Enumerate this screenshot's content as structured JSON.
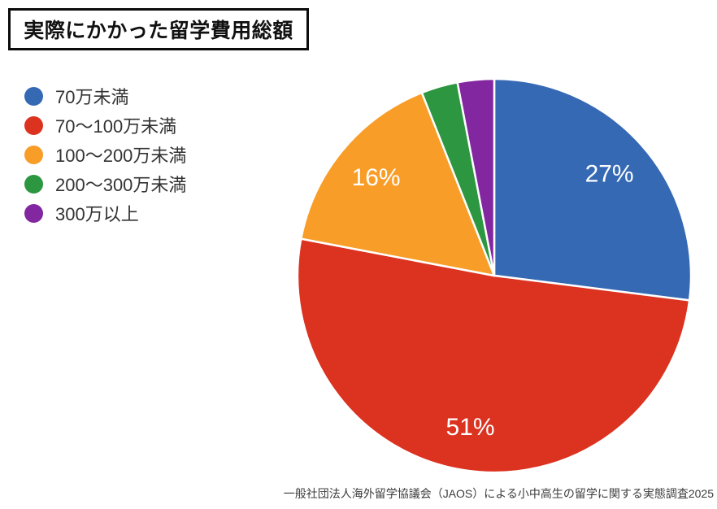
{
  "title": "実際にかかった留学費用総額",
  "source": "一般社団法人海外留学協議会（JAOS）による小中高生の留学に関する実態調査2025",
  "chart_data": {
    "type": "pie",
    "title": "実際にかかった留学費用総額",
    "direction": "clockwise",
    "start_angle_deg": 0,
    "legend_position": "left",
    "slice_label_color": "#FFFFFF",
    "slice_divider_color": "#FFFFFF",
    "segments": [
      {
        "label": "70万未満",
        "value": 27,
        "display_label": "27%",
        "color": "#3569B4"
      },
      {
        "label": "70〜100万未満",
        "value": 51,
        "display_label": "51%",
        "color": "#DC3220"
      },
      {
        "label": "100〜200万未満",
        "value": 16,
        "display_label": "16%",
        "color": "#F89D28"
      },
      {
        "label": "200〜300万未満",
        "value": 3,
        "display_label": "",
        "color": "#2D9640"
      },
      {
        "label": "300万以上",
        "value": 3,
        "display_label": "",
        "color": "#8227A0"
      }
    ]
  }
}
